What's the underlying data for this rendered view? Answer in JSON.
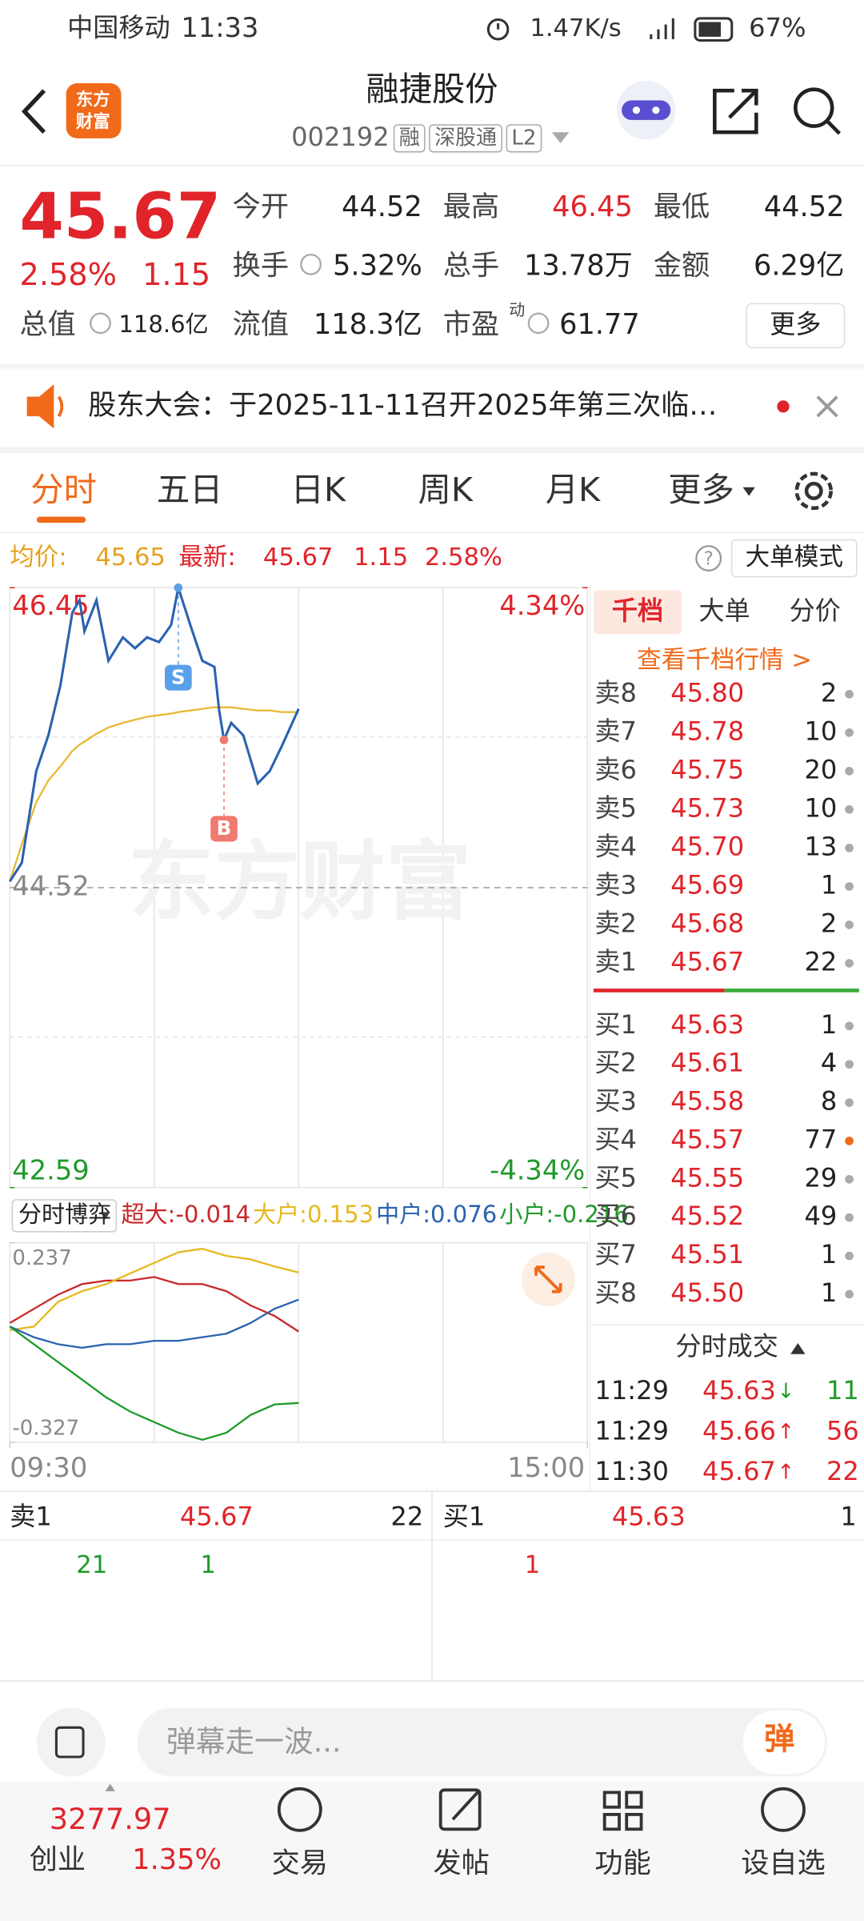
{
  "status": {
    "carrier": "中国移动",
    "time": "11:33",
    "speed": "1.47K/s",
    "battery": "67%"
  },
  "header": {
    "logo": [
      "东方",
      "财富"
    ],
    "title": "融捷股份",
    "code": "002192",
    "tags": [
      "融",
      "深股通",
      "L2"
    ]
  },
  "quote": {
    "price": "45.67",
    "pct": "2.58%",
    "change": "1.15",
    "fields": [
      {
        "label": "今开",
        "value": "44.52"
      },
      {
        "label": "最高",
        "value": "46.45"
      },
      {
        "label": "最低",
        "value": "44.52"
      },
      {
        "label": "换手",
        "value": "5.32%"
      },
      {
        "label": "总手",
        "value": "13.78万"
      },
      {
        "label": "金额",
        "value": "6.29亿"
      },
      {
        "label": "流值",
        "value": "118.3亿"
      },
      {
        "label": "市盈",
        "value": "61.77",
        "sup": "动"
      }
    ],
    "total": {
      "label": "总值",
      "value": "118.6亿"
    },
    "more": "更多"
  },
  "notice": "股东大会：于2025-11-11召开2025年第三次临…",
  "tabs": [
    "分时",
    "五日",
    "日K",
    "周K",
    "月K",
    "更多"
  ],
  "infobar": {
    "avg_label": "均价:",
    "avg": "45.65",
    "last_label": "最新:",
    "last": "45.67",
    "change": "1.15",
    "pct": "2.58%",
    "help": "?",
    "mode": "大单模式"
  },
  "chart_data": [
    {
      "type": "line",
      "watermark": "东方财富",
      "x": [
        0,
        5,
        11,
        16,
        21,
        26,
        29,
        31,
        36,
        41,
        47,
        52,
        57,
        62,
        67,
        70,
        75,
        80,
        85,
        87,
        89,
        92,
        97,
        103,
        108,
        113,
        120
      ],
      "series": [
        {
          "color": "#2a62b0",
          "values": [
            44.56,
            44.68,
            45.27,
            45.5,
            45.82,
            46.29,
            46.37,
            46.17,
            46.37,
            45.98,
            46.13,
            46.06,
            46.13,
            46.1,
            46.21,
            46.45,
            46.21,
            45.98,
            45.94,
            45.66,
            45.47,
            45.58,
            45.5,
            45.19,
            45.27,
            45.43,
            45.67
          ]
        },
        {
          "color": "#e8b830",
          "values": [
            44.56,
            44.8,
            45.07,
            45.21,
            45.3,
            45.4,
            45.44,
            45.46,
            45.51,
            45.55,
            45.58,
            45.6,
            45.62,
            45.63,
            45.64,
            45.65,
            45.66,
            45.67,
            45.68,
            45.68,
            45.68,
            45.68,
            45.67,
            45.66,
            45.66,
            45.65,
            45.65
          ]
        }
      ],
      "xlim": [
        0,
        240
      ],
      "ylim": [
        42.59,
        46.45
      ],
      "yticks": [
        46.45,
        44.52,
        42.59
      ],
      "y2lim": [
        -4.34,
        4.34
      ],
      "y2ticks": [
        {
          "value": 4.34,
          "label": "4.34%"
        },
        {
          "value": -4.34,
          "label": "-4.34%"
        }
      ],
      "markers": [
        {
          "label": "S",
          "x": 70,
          "value": 46.45
        },
        {
          "label": "B",
          "x": 89,
          "value": 45.47
        }
      ]
    },
    {
      "type": "line",
      "title": "分时博弈",
      "x": [
        0,
        10,
        20,
        30,
        40,
        50,
        60,
        70,
        80,
        90,
        100,
        110,
        120
      ],
      "series": [
        {
          "name": "超大:",
          "current": "-0.014",
          "color": "#c8282a",
          "values": [
            0.01,
            0.05,
            0.09,
            0.12,
            0.13,
            0.13,
            0.14,
            0.12,
            0.12,
            0.1,
            0.06,
            0.03,
            -0.014
          ]
        },
        {
          "name": "大户:",
          "current": "0.153",
          "color": "#e6b820",
          "values": [
            -0.01,
            0.0,
            0.07,
            0.1,
            0.12,
            0.15,
            0.18,
            0.21,
            0.22,
            0.2,
            0.19,
            0.17,
            0.153
          ]
        },
        {
          "name": "中户:",
          "current": "0.076",
          "color": "#2a62b0",
          "values": [
            0.0,
            -0.03,
            -0.05,
            -0.06,
            -0.05,
            -0.05,
            -0.04,
            -0.04,
            -0.03,
            -0.02,
            0.01,
            0.05,
            0.076
          ]
        },
        {
          "name": "小户:",
          "current": "-0.216",
          "color": "#1f9a2a",
          "values": [
            0.0,
            -0.05,
            -0.1,
            -0.15,
            -0.2,
            -0.24,
            -0.27,
            -0.3,
            -0.32,
            -0.3,
            -0.25,
            -0.22,
            -0.216
          ]
        }
      ],
      "xlim": [
        0,
        240
      ],
      "ylim": [
        -0.327,
        0.237
      ],
      "yticks": [
        0.237,
        -0.327
      ],
      "xticks": [
        {
          "value": 0,
          "label": "09:30"
        },
        {
          "value": 240,
          "label": "15:00"
        }
      ]
    }
  ],
  "orderbook": {
    "tabs": [
      "千档",
      "大单",
      "分价"
    ],
    "link": "查看千档行情 >",
    "asks": [
      {
        "label": "卖8",
        "price": "45.80",
        "volume": "2"
      },
      {
        "label": "卖7",
        "price": "45.78",
        "volume": "10"
      },
      {
        "label": "卖6",
        "price": "45.75",
        "volume": "20"
      },
      {
        "label": "卖5",
        "price": "45.73",
        "volume": "10"
      },
      {
        "label": "卖4",
        "price": "45.70",
        "volume": "13"
      },
      {
        "label": "卖3",
        "price": "45.69",
        "volume": "1"
      },
      {
        "label": "卖2",
        "price": "45.68",
        "volume": "2"
      },
      {
        "label": "卖1",
        "price": "45.67",
        "volume": "22"
      }
    ],
    "bids": [
      {
        "label": "买1",
        "price": "45.63",
        "volume": "1"
      },
      {
        "label": "买2",
        "price": "45.61",
        "volume": "4"
      },
      {
        "label": "买3",
        "price": "45.58",
        "volume": "8"
      },
      {
        "label": "买4",
        "price": "45.57",
        "volume": "77"
      },
      {
        "label": "买5",
        "price": "45.55",
        "volume": "29"
      },
      {
        "label": "买6",
        "price": "45.52",
        "volume": "49"
      },
      {
        "label": "买7",
        "price": "45.51",
        "volume": "1"
      },
      {
        "label": "买8",
        "price": "45.50",
        "volume": "1"
      }
    ]
  },
  "trades": {
    "title": "分时成交",
    "rows": [
      {
        "time": "11:29",
        "price": "45.63",
        "dir": "↓",
        "volume": "11"
      },
      {
        "time": "11:29",
        "price": "45.66",
        "dir": "↑",
        "volume": "56"
      },
      {
        "time": "11:30",
        "price": "45.67",
        "dir": "↑",
        "volume": "22"
      }
    ]
  },
  "level2": {
    "ask": {
      "label": "卖1",
      "price": "45.67",
      "volume": "22",
      "queue": [
        "21",
        "1"
      ]
    },
    "bid": {
      "label": "买1",
      "price": "45.63",
      "volume": "1",
      "queue": [
        "1"
      ]
    }
  },
  "comment": {
    "placeholder": "弹幕走一波...",
    "button": "弹"
  },
  "nav": {
    "index": "3277.97",
    "index_name": "创业",
    "index_pct": "1.35%",
    "items": [
      "交易",
      "发帖",
      "功能",
      "设自选"
    ]
  }
}
